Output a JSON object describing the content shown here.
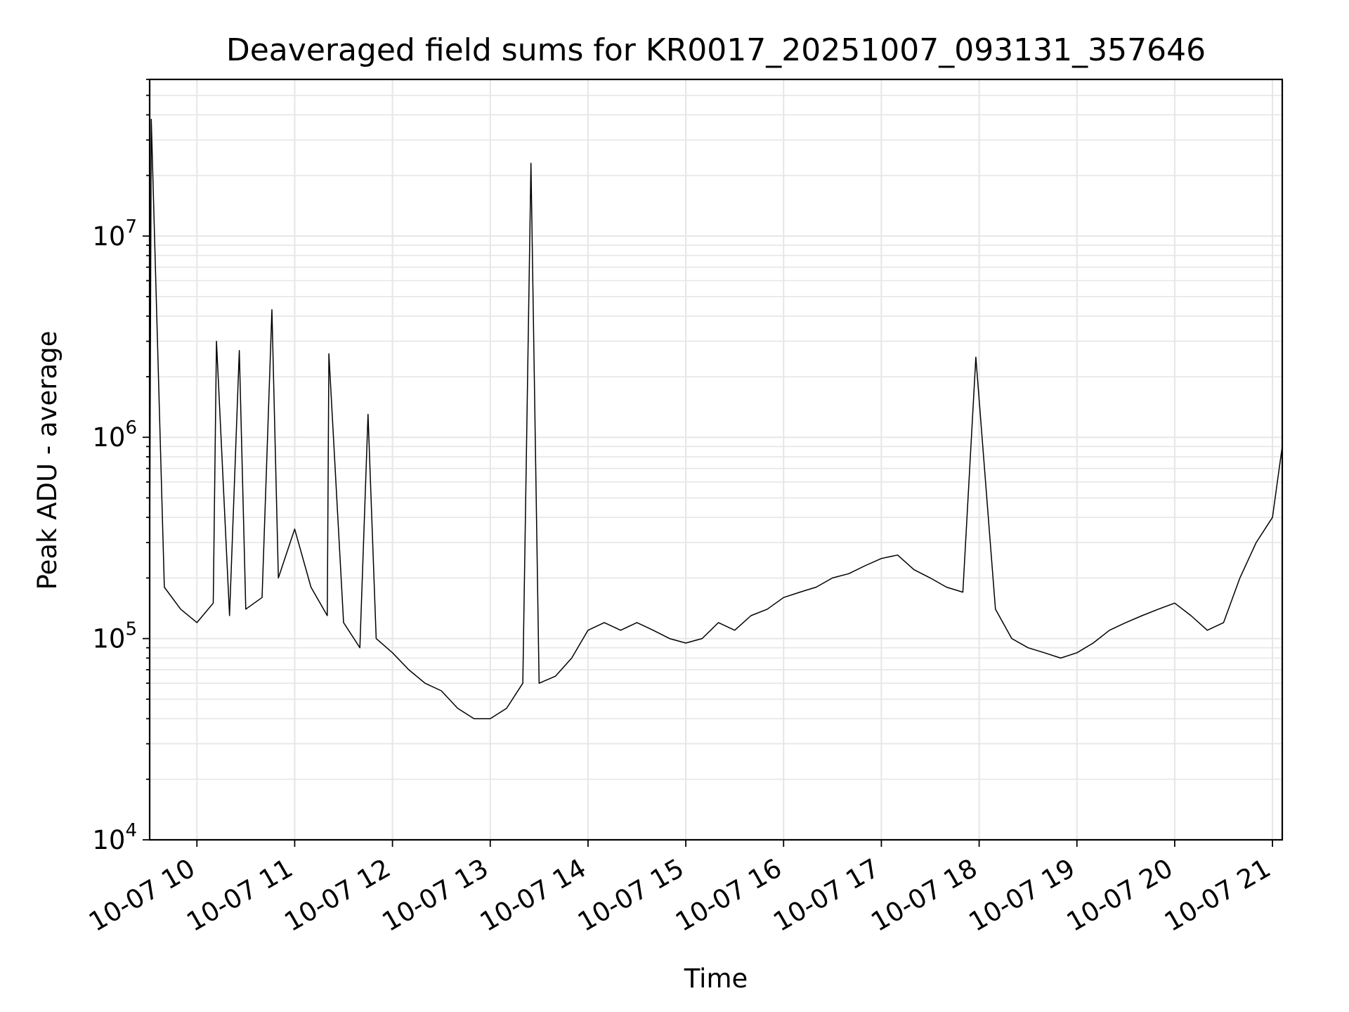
{
  "chart_data": {
    "type": "line",
    "title": "Deaveraged field sums for KR0017_20251007_093131_357646",
    "xlabel": "Time",
    "ylabel": "Peak ADU - average",
    "yscale": "log",
    "ylim": [
      10000,
      60000000
    ],
    "xlim": [
      "2025-10-07 09:31",
      "2025-10-07 21:06"
    ],
    "x_tick_labels": [
      "10-07 10",
      "10-07 11",
      "10-07 12",
      "10-07 13",
      "10-07 14",
      "10-07 15",
      "10-07 16",
      "10-07 17",
      "10-07 18",
      "10-07 19",
      "10-07 20",
      "10-07 21"
    ],
    "y_tick_labels": [
      {
        "base": "10",
        "exp": "4"
      },
      {
        "base": "10",
        "exp": "5"
      },
      {
        "base": "10",
        "exp": "6"
      },
      {
        "base": "10",
        "exp": "7"
      }
    ],
    "grid": true,
    "line_color": "#000000",
    "grid_color": "#e6e6e6",
    "series": [
      {
        "x": [
          "2025-10-07 09:31",
          "2025-10-07 09:32",
          "2025-10-07 09:40",
          "2025-10-07 09:50",
          "2025-10-07 10:00",
          "2025-10-07 10:10",
          "2025-10-07 10:12",
          "2025-10-07 10:20",
          "2025-10-07 10:26",
          "2025-10-07 10:30",
          "2025-10-07 10:40",
          "2025-10-07 10:46",
          "2025-10-07 10:50",
          "2025-10-07 11:00",
          "2025-10-07 11:10",
          "2025-10-07 11:20",
          "2025-10-07 11:21",
          "2025-10-07 11:30",
          "2025-10-07 11:40",
          "2025-10-07 11:45",
          "2025-10-07 11:50",
          "2025-10-07 12:00",
          "2025-10-07 12:10",
          "2025-10-07 12:20",
          "2025-10-07 12:30",
          "2025-10-07 12:40",
          "2025-10-07 12:50",
          "2025-10-07 13:00",
          "2025-10-07 13:10",
          "2025-10-07 13:20",
          "2025-10-07 13:25",
          "2025-10-07 13:30",
          "2025-10-07 13:40",
          "2025-10-07 13:50",
          "2025-10-07 14:00",
          "2025-10-07 14:10",
          "2025-10-07 14:20",
          "2025-10-07 14:30",
          "2025-10-07 14:40",
          "2025-10-07 14:50",
          "2025-10-07 15:00",
          "2025-10-07 15:10",
          "2025-10-07 15:20",
          "2025-10-07 15:30",
          "2025-10-07 15:40",
          "2025-10-07 15:50",
          "2025-10-07 16:00",
          "2025-10-07 16:10",
          "2025-10-07 16:20",
          "2025-10-07 16:30",
          "2025-10-07 16:40",
          "2025-10-07 16:50",
          "2025-10-07 17:00",
          "2025-10-07 17:10",
          "2025-10-07 17:20",
          "2025-10-07 17:30",
          "2025-10-07 17:40",
          "2025-10-07 17:50",
          "2025-10-07 17:58",
          "2025-10-07 18:10",
          "2025-10-07 18:20",
          "2025-10-07 18:30",
          "2025-10-07 18:40",
          "2025-10-07 18:50",
          "2025-10-07 19:00",
          "2025-10-07 19:10",
          "2025-10-07 19:20",
          "2025-10-07 19:30",
          "2025-10-07 19:40",
          "2025-10-07 19:50",
          "2025-10-07 20:00",
          "2025-10-07 20:10",
          "2025-10-07 20:20",
          "2025-10-07 20:30",
          "2025-10-07 20:40",
          "2025-10-07 20:50",
          "2025-10-07 21:00",
          "2025-10-07 21:03",
          "2025-10-07 21:06"
        ],
        "y": [
          250000,
          38000000,
          180000,
          140000,
          120000,
          150000,
          3000000,
          130000,
          2700000,
          140000,
          160000,
          4300000,
          200000,
          350000,
          180000,
          130000,
          2600000,
          120000,
          90000,
          1300000,
          100000,
          85000,
          70000,
          60000,
          55000,
          45000,
          40000,
          40000,
          45000,
          60000,
          23000000,
          60000,
          65000,
          80000,
          110000,
          120000,
          110000,
          120000,
          110000,
          100000,
          95000,
          100000,
          120000,
          110000,
          130000,
          140000,
          160000,
          170000,
          180000,
          200000,
          210000,
          230000,
          250000,
          260000,
          220000,
          200000,
          180000,
          170000,
          2500000,
          140000,
          100000,
          90000,
          85000,
          80000,
          85000,
          95000,
          110000,
          120000,
          130000,
          140000,
          150000,
          130000,
          110000,
          120000,
          200000,
          300000,
          400000,
          600000,
          900000
        ]
      }
    ]
  }
}
